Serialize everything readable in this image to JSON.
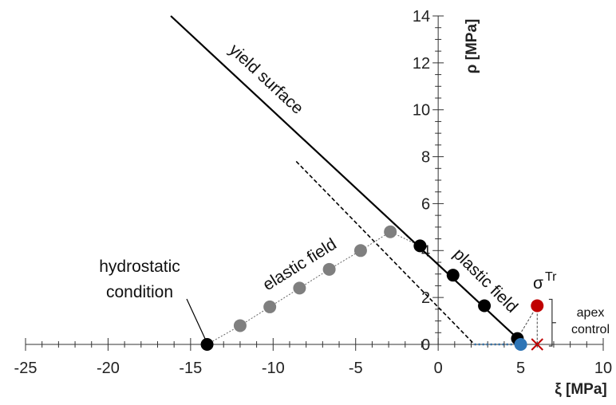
{
  "chart_data": {
    "type": "scatter",
    "x_axis": {
      "label": "ξ [MPa]",
      "range": [
        -25,
        10
      ],
      "ticks": [
        -25,
        -20,
        -15,
        -10,
        -5,
        0,
        5,
        10
      ],
      "tick_labels": [
        "-25",
        "-20",
        "-15",
        "-10",
        "-5",
        "0",
        "5",
        "10"
      ]
    },
    "y_axis": {
      "label": "ρ [MPa]",
      "range": [
        0,
        14
      ],
      "ticks": [
        0,
        2,
        4,
        6,
        8,
        10,
        12,
        14
      ],
      "tick_labels": [
        "0",
        "2",
        "4",
        "6",
        "8",
        "10",
        "12",
        "14"
      ]
    },
    "grid": false,
    "lines": {
      "yield_surface": {
        "x": [
          -16.2,
          5.2
        ],
        "y": [
          14.0,
          0.0
        ],
        "style": "solid",
        "color": "#000000"
      },
      "shifted_surface": {
        "x": [
          -8.6,
          2.2
        ],
        "y": [
          7.8,
          0.0
        ],
        "style": "dashed",
        "color": "#000000"
      },
      "apex_projection": {
        "x": [
          2.2,
          5.2
        ],
        "y": [
          0.0,
          0.0
        ],
        "style": "dotted",
        "color": "#2e6fa8"
      }
    },
    "series": [
      {
        "name": "",
        "color": "#7f7f7f",
        "x": [
          -12.0,
          -10.2,
          -8.4,
          -6.6,
          -4.7,
          -2.9
        ],
        "y": [
          0.8,
          1.6,
          2.4,
          3.2,
          4.0,
          4.8
        ]
      },
      {
        "name": "",
        "color": "#000000",
        "x": [
          -14.0,
          -1.1,
          0.9,
          2.8,
          4.8
        ],
        "y": [
          0.0,
          4.2,
          2.95,
          1.65,
          0.25
        ]
      },
      {
        "name": "",
        "color": "#c00000",
        "x": [
          6.0
        ],
        "y": [
          1.65
        ]
      },
      {
        "name": "",
        "color": "#2e75b6",
        "x": [
          5.0
        ],
        "y": [
          0.0
        ]
      },
      {
        "name": "",
        "color": "#c00000",
        "marker": "x",
        "x": [
          6.0
        ],
        "y": [
          0.0
        ]
      }
    ],
    "annotations": {
      "yield_surface": "yield surface",
      "elastic_field": "elastic field",
      "plastic_field": "plastic field",
      "hydrostatic_line1": "hydrostatic",
      "hydrostatic_line2": "condition",
      "sigma_base": "σ",
      "sigma_sup": "Tr",
      "apex_line1": "apex",
      "apex_line2": "control"
    }
  }
}
